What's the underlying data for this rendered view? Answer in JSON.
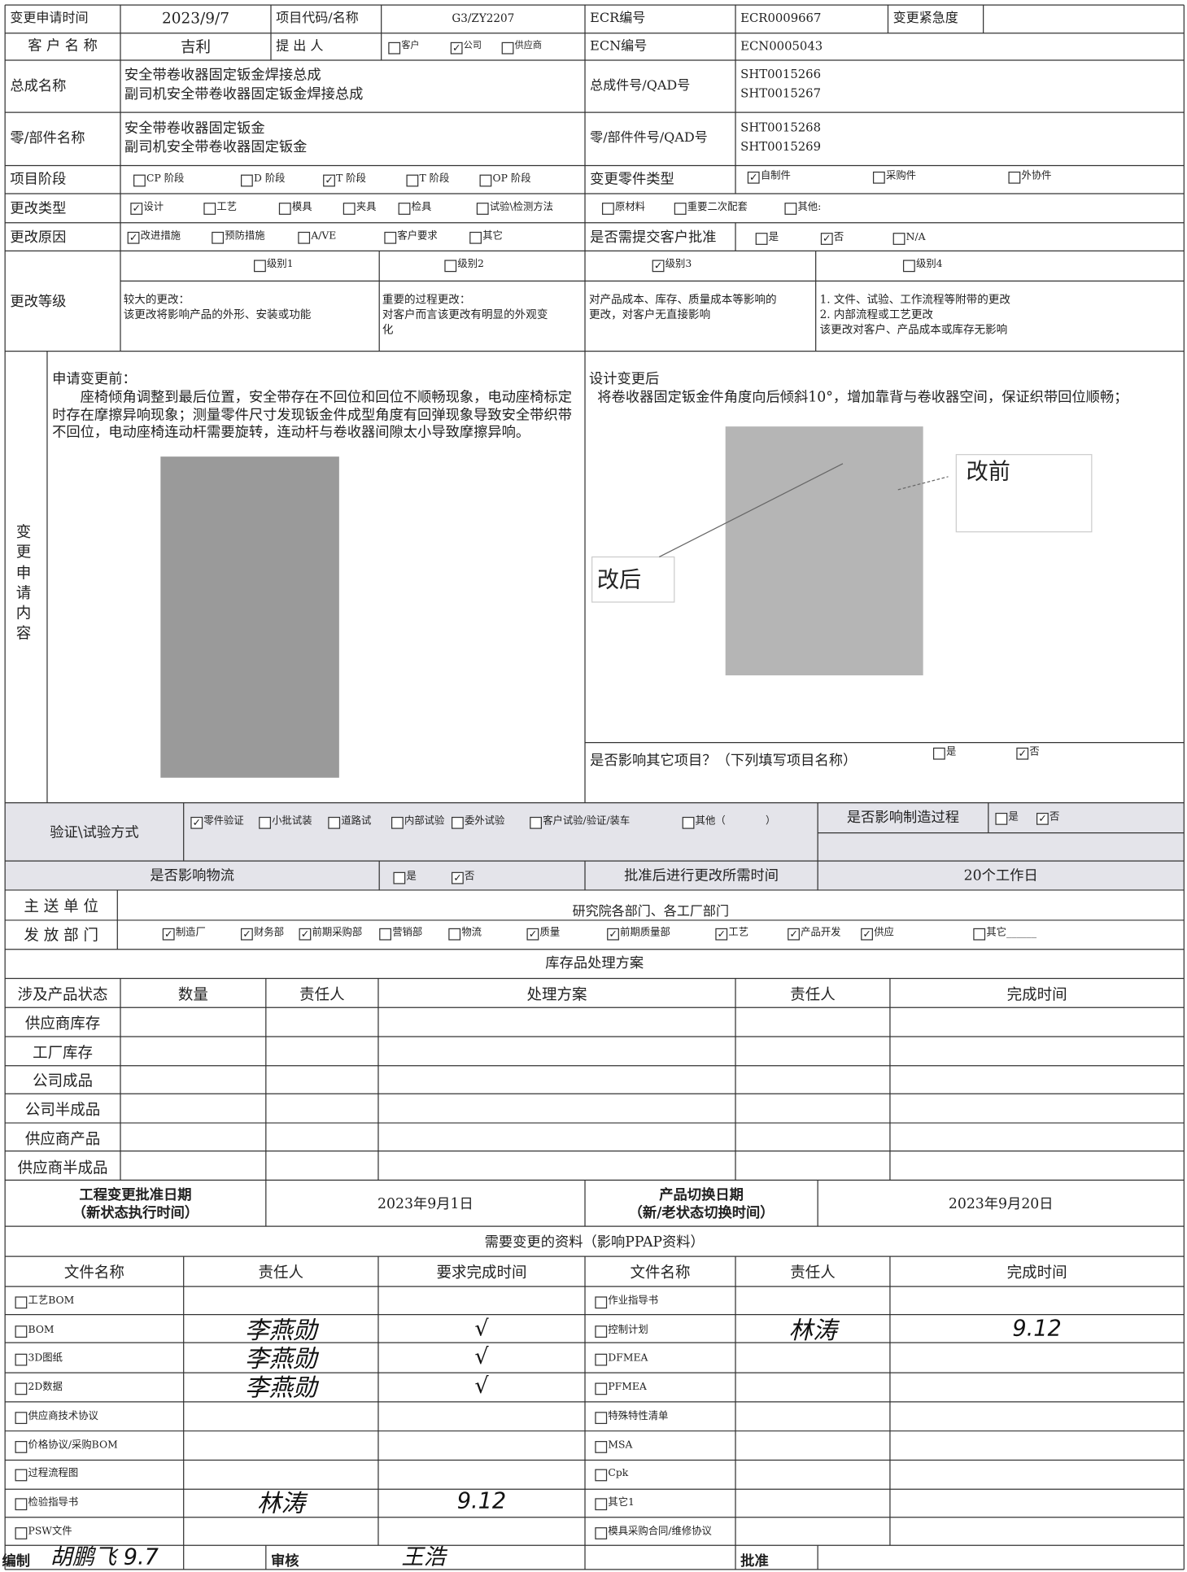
{
  "form": {
    "r1": {
      "date_label": "变更申请时间",
      "date": "2023/9/7",
      "project_label": "项目代码/名称",
      "project": "G3/ZY2207",
      "ecr_label": "ECR编号",
      "ecr": "ECR0009667",
      "urgency_label": "变更紧急度"
    },
    "r2": {
      "customer_label": "客 户 名 称",
      "customer": "吉利",
      "proposer_label": "提 出 人",
      "proposer": [
        {
          "label": "客户",
          "checked": false
        },
        {
          "label": "公司",
          "checked": true
        },
        {
          "label": "供应商",
          "checked": false
        }
      ],
      "ecn_label": "ECN编号",
      "ecn": "ECN0005043"
    },
    "assembly": {
      "label": "总成名称",
      "names": [
        "安全带卷收器固定钣金焊接总成",
        "副司机安全带卷收器固定钣金焊接总成"
      ],
      "no_label": "总成件号/QAD号",
      "nos": [
        "SHT0015266",
        "SHT0015267"
      ]
    },
    "part": {
      "label": "零/部件名称",
      "names": [
        "安全带卷收器固定钣金",
        "副司机安全带卷收器固定钣金"
      ],
      "no_label": "零/部件件号/QAD号",
      "nos": [
        "SHT0015268",
        "SHT0015269"
      ]
    },
    "stage": {
      "label": "项目阶段",
      "options": [
        {
          "label": "CP 阶段",
          "checked": false
        },
        {
          "label": "D 阶段",
          "checked": false
        },
        {
          "label": "T 阶段",
          "checked": true
        },
        {
          "label": "T 阶段",
          "checked": false
        },
        {
          "label": "OP 阶段",
          "checked": false
        }
      ],
      "part_type_label": "变更零件类型",
      "part_type": [
        {
          "label": "自制件",
          "checked": true
        },
        {
          "label": "采购件",
          "checked": false
        },
        {
          "label": "外协件",
          "checked": false
        }
      ]
    },
    "change_type": {
      "label": "更改类型",
      "options": [
        {
          "label": "设计",
          "checked": true
        },
        {
          "label": "工艺",
          "checked": false
        },
        {
          "label": "模具",
          "checked": false
        },
        {
          "label": "夹具",
          "checked": false
        },
        {
          "label": "检具",
          "checked": false
        },
        {
          "label": "试验\\检测方法",
          "checked": false
        },
        {
          "label": "原材料",
          "checked": false
        },
        {
          "label": "重要二次配套",
          "checked": false
        },
        {
          "label": "其他:",
          "checked": false
        }
      ]
    },
    "reason": {
      "label": "更改原因",
      "options": [
        {
          "label": "改进措施",
          "checked": true
        },
        {
          "label": "预防措施",
          "checked": false
        },
        {
          "label": "A/VE",
          "checked": false
        },
        {
          "label": "客户要求",
          "checked": false
        },
        {
          "label": "其它",
          "checked": false
        }
      ],
      "approval_label": "是否需提交客户批准",
      "approval": [
        {
          "label": "是",
          "checked": false
        },
        {
          "label": "否",
          "checked": true
        },
        {
          "label": "N/A",
          "checked": false
        }
      ]
    },
    "level": {
      "label": "更改等级",
      "options": [
        {
          "label": "级别1",
          "checked": false
        },
        {
          "label": "级别2",
          "checked": false
        },
        {
          "label": "级别3",
          "checked": true
        },
        {
          "label": "级别4",
          "checked": false
        }
      ],
      "descriptions": [
        [
          "较大的更改：",
          "该更改将影响产品的外形、安装或功能"
        ],
        [
          "重要的过程更改：",
          "对客户而言该更改有明显的外观变",
          "化"
        ],
        [
          "对产品成本、库存、质量成本等影响的",
          "更改，对客户无直接影响"
        ],
        [
          "1. 文件、试验、工作流程等附带的更改",
          "2. 内部流程或工艺更改",
          "该更改对客户、产品成本或库存无影响"
        ]
      ]
    },
    "content": {
      "label": "变更申请内容",
      "before_title": "申请变更前：",
      "before_text": "座椅倾角调整到最后位置，安全带存在不回位和回位不顺畅现象，电动座椅标定时存在摩擦异响现象；测量零件尺寸发现钣金件成型角度有回弹现象导致安全带织带不回位，电动座椅连动杆需要旋转，连动杆与卷收器间隙太小导致摩擦异响。",
      "after_title": "设计变更后",
      "after_text": "将卷收器固定钣金件角度向后倾斜10°，增加靠背与卷收器空间，保证织带回位顺畅；",
      "callout_before": "改前",
      "callout_after": "改后",
      "affect_label": "是否影响其它项目？（下列填写项目名称）",
      "affect": [
        {
          "label": "是",
          "checked": false
        },
        {
          "label": "否",
          "checked": true
        }
      ]
    },
    "verify": {
      "label": "验证\\试验方式",
      "options": [
        {
          "label": "零件验证",
          "checked": true
        },
        {
          "label": "小批试装",
          "checked": false
        },
        {
          "label": "道路试",
          "checked": false
        },
        {
          "label": "内部试验",
          "checked": false
        },
        {
          "label": "委外试验",
          "checked": false
        },
        {
          "label": "客户试验/验证/装车",
          "checked": false
        },
        {
          "label": "其他（　　　　）",
          "checked": false
        }
      ],
      "mfg_label": "是否影响制造过程",
      "mfg": [
        {
          "label": "是",
          "checked": false
        },
        {
          "label": "否",
          "checked": true
        }
      ]
    },
    "logistics": {
      "label": "是否影响物流",
      "options": [
        {
          "label": "是",
          "checked": false
        },
        {
          "label": "否",
          "checked": true
        }
      ],
      "time_label": "批准后进行更改所需时间",
      "time": "20个工作日"
    },
    "main_dept": {
      "label": "主 送 单 位",
      "value": "研究院各部门、各工厂部门"
    },
    "distribution": {
      "label": "发 放 部 门",
      "options": [
        {
          "label": "制造厂",
          "checked": true
        },
        {
          "label": "财务部",
          "checked": true
        },
        {
          "label": "前期采购部",
          "checked": true
        },
        {
          "label": "营销部",
          "checked": false
        },
        {
          "label": "物流",
          "checked": false
        },
        {
          "label": "质量",
          "checked": true
        },
        {
          "label": "前期质量部",
          "checked": true
        },
        {
          "label": "工艺",
          "checked": true
        },
        {
          "label": "产品开发",
          "checked": true
        },
        {
          "label": "供应",
          "checked": true
        },
        {
          "label": "其它______",
          "checked": false
        }
      ]
    },
    "inventory": {
      "title": "库存品处理方案",
      "headers": [
        "涉及产品状态",
        "数量",
        "责任人",
        "处理方案",
        "责任人",
        "完成时间"
      ],
      "rows": [
        "供应商库存",
        "工厂库存",
        "公司成品",
        "公司半成品",
        "供应商产品",
        "供应商半成品"
      ]
    },
    "dates": {
      "eng_label": [
        "工程变更批准日期",
        "（新状态执行时间）"
      ],
      "eng": "2023年9月1日",
      "switch_label": [
        "产品切换日期",
        "（新/老状态切换时间）"
      ],
      "switch": "2023年9月20日"
    },
    "docs": {
      "title": "需要变更的资料（影响PPAP资料）",
      "headers": [
        "文件名称",
        "责任人",
        "要求完成时间",
        "文件名称",
        "责任人",
        "完成时间"
      ],
      "left": [
        {
          "label": "工艺BOM",
          "checked": false,
          "owner": null,
          "due": null
        },
        {
          "label": "BOM",
          "checked": false,
          "owner": "李燕勋",
          "due": "√"
        },
        {
          "label": "3D图纸",
          "checked": false,
          "owner": "李燕勋",
          "due": "√"
        },
        {
          "label": "2D数据",
          "checked": false,
          "owner": "李燕勋",
          "due": "√"
        },
        {
          "label": "供应商技术协议",
          "checked": false,
          "owner": null,
          "due": null
        },
        {
          "label": "价格协议/采购BOM",
          "checked": false,
          "owner": null,
          "due": null
        },
        {
          "label": "过程流程图",
          "checked": false,
          "owner": null,
          "due": null
        },
        {
          "label": "检验指导书",
          "checked": false,
          "owner": "林涛",
          "due": "9.12"
        },
        {
          "label": "PSW文件",
          "checked": false,
          "owner": null,
          "due": null
        }
      ],
      "right": [
        {
          "label": "作业指导书",
          "checked": false,
          "owner": null,
          "due": null
        },
        {
          "label": "控制计划",
          "checked": false,
          "owner": "林涛",
          "due": "9.12"
        },
        {
          "label": "DFMEA",
          "checked": false,
          "owner": null,
          "due": null
        },
        {
          "label": "PFMEA",
          "checked": false,
          "owner": null,
          "due": null
        },
        {
          "label": "特殊特性清单",
          "checked": false,
          "owner": null,
          "due": null
        },
        {
          "label": "MSA",
          "checked": false,
          "owner": null,
          "due": null
        },
        {
          "label": "Cpk",
          "checked": false,
          "owner": null,
          "due": null
        },
        {
          "label": "其它1",
          "checked": false,
          "owner": null,
          "due": null
        },
        {
          "label": "模具采购合同/维修协议",
          "checked": false,
          "owner": null,
          "due": null
        }
      ]
    },
    "sign": {
      "prepared_label": "编制",
      "prepared": "胡鹏飞 9.7",
      "review_label": "审核",
      "review": "王浩",
      "approve_label": "批准"
    }
  }
}
